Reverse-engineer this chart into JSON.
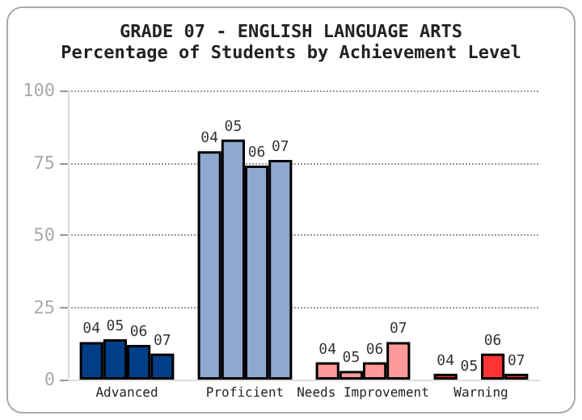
{
  "chart_data": {
    "type": "bar",
    "title": "GRADE 07 - ENGLISH LANGUAGE ARTS",
    "subtitle": "Percentage of Students by Achievement Level",
    "categories": [
      "Advanced",
      "Proficient",
      "Needs Improvement",
      "Warning"
    ],
    "series": [
      {
        "name": "04",
        "colors": [
          "#003f87",
          "#8fa8cf",
          "#ff9999",
          "#ff3333"
        ],
        "values": [
          13,
          79,
          6,
          2
        ]
      },
      {
        "name": "05",
        "colors": [
          "#003f87",
          "#8fa8cf",
          "#ff9999",
          "#ff3333"
        ],
        "values": [
          14,
          83,
          3,
          0
        ]
      },
      {
        "name": "06",
        "colors": [
          "#003f87",
          "#8fa8cf",
          "#ff9999",
          "#ff3333"
        ],
        "values": [
          12,
          74,
          6,
          9
        ]
      },
      {
        "name": "07",
        "colors": [
          "#003f87",
          "#8fa8cf",
          "#ff9999",
          "#ff3333"
        ],
        "values": [
          9,
          76,
          13,
          2
        ]
      }
    ],
    "ylim": [
      0,
      100
    ],
    "yticks": [
      0,
      25,
      50,
      75,
      100
    ],
    "grid": "y",
    "legend": false
  }
}
